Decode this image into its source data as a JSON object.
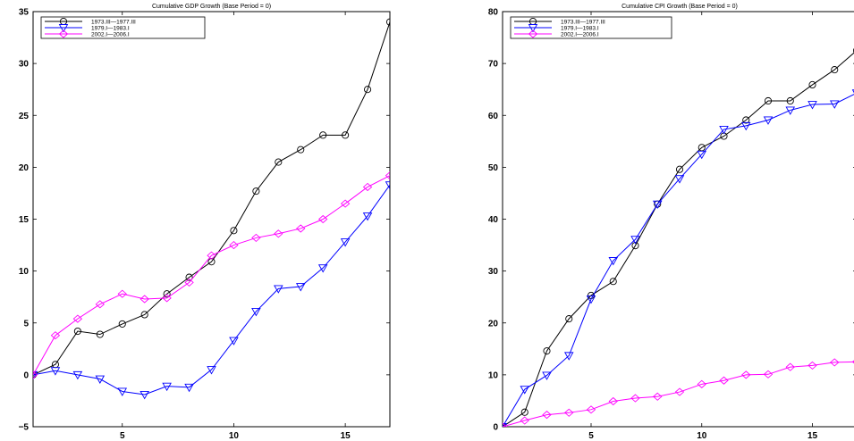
{
  "chart_data": [
    {
      "type": "line",
      "title": "Cumulative GDP Growth (Base Period = 0)",
      "xlabel": "",
      "ylabel": "",
      "x": [
        1,
        2,
        3,
        4,
        5,
        6,
        7,
        8,
        9,
        10,
        11,
        12,
        13,
        14,
        15,
        16,
        17
      ],
      "xlim": [
        1,
        17
      ],
      "ylim": [
        -5,
        35
      ],
      "xticks": [
        5,
        10,
        15
      ],
      "yticks": [
        -5,
        0,
        5,
        10,
        15,
        20,
        25,
        30,
        35
      ],
      "grid": false,
      "legend_position": "top-left",
      "series": [
        {
          "name": "1973.III—1977.III",
          "color": "#000000",
          "marker": "circle",
          "values": [
            0,
            1.0,
            4.2,
            3.9,
            4.9,
            5.8,
            7.8,
            9.4,
            10.9,
            13.9,
            17.7,
            20.5,
            21.7,
            23.1,
            23.1,
            27.5,
            34.0
          ]
        },
        {
          "name": "1979.I—1983.I",
          "color": "#0000ff",
          "marker": "triangle-down",
          "values": [
            0,
            0.4,
            0.0,
            -0.4,
            -1.6,
            -1.9,
            -1.1,
            -1.2,
            0.5,
            3.3,
            6.1,
            8.3,
            8.5,
            10.3,
            12.8,
            15.3,
            18.3
          ]
        },
        {
          "name": "2002.I—2006.I",
          "color": "#ff00ff",
          "marker": "diamond",
          "values": [
            0,
            3.8,
            5.4,
            6.8,
            7.8,
            7.3,
            7.4,
            8.9,
            11.5,
            12.5,
            13.2,
            13.6,
            14.1,
            15.0,
            16.5,
            18.1,
            19.2
          ]
        }
      ]
    },
    {
      "type": "line",
      "title": "Cumulative CPI Growth (Base Period = 0)",
      "xlabel": "",
      "ylabel": "",
      "x": [
        1,
        2,
        3,
        4,
        5,
        6,
        7,
        8,
        9,
        10,
        11,
        12,
        13,
        14,
        15,
        16,
        17
      ],
      "xlim": [
        1,
        17
      ],
      "ylim": [
        0,
        80
      ],
      "xticks": [
        5,
        10,
        15
      ],
      "yticks": [
        0,
        10,
        20,
        30,
        40,
        50,
        60,
        70,
        80
      ],
      "grid": false,
      "legend_position": "top-left",
      "series": [
        {
          "name": "1973.III—1977.III",
          "color": "#000000",
          "marker": "circle",
          "values": [
            0,
            2.8,
            14.6,
            20.8,
            25.3,
            28.0,
            34.9,
            42.9,
            49.6,
            53.8,
            56.0,
            59.1,
            62.8,
            62.8,
            65.9,
            68.8,
            72.5
          ]
        },
        {
          "name": "1979.I—1983.I",
          "color": "#0000ff",
          "marker": "triangle-down",
          "values": [
            0,
            7.2,
            9.9,
            13.7,
            24.6,
            32.0,
            36.1,
            42.9,
            47.8,
            52.5,
            57.3,
            58.0,
            59.1,
            61.0,
            62.1,
            62.2,
            64.3
          ]
        },
        {
          "name": "2002.I—2006.I",
          "color": "#ff00ff",
          "marker": "diamond",
          "values": [
            0,
            1.2,
            2.3,
            2.7,
            3.3,
            4.9,
            5.5,
            5.8,
            6.7,
            8.2,
            8.9,
            10.0,
            10.1,
            11.5,
            11.8,
            12.4,
            12.5
          ]
        }
      ]
    }
  ]
}
